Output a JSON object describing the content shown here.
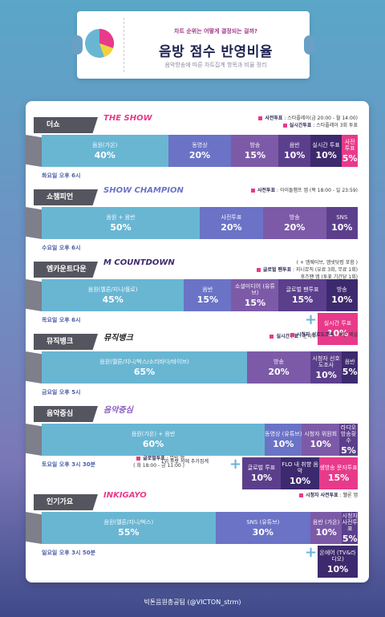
{
  "header": {
    "subtitle": "차트 순위는 어떻게 결정되는 걸까?",
    "title": "음방 점수 반영비율",
    "description": "음악방송에 따른 차트집계 항목과 비율 정리"
  },
  "colors": {
    "teal": "#69b6d3",
    "indigo": "#6b73c7",
    "violet": "#7c5aa8",
    "purple": "#5c3f8c",
    "deep": "#3d2a6e",
    "pink": "#e83a8a"
  },
  "chart_data": [
    {
      "type": "bar",
      "title": "더쇼",
      "logo": "THE SHOW",
      "schedule": "화요일 오후 6시",
      "notes": [
        {
          "label": "사전투표",
          "text": "스타플레이(금 20:00 - 월 14:00)"
        },
        {
          "label": "실시간투표",
          "text": "스타플레이 3회 투표"
        }
      ],
      "categories": [
        "음원(가온)",
        "동영상",
        "방송",
        "음반",
        "실시간 투표",
        "사전 투표"
      ],
      "values": [
        40,
        20,
        15,
        10,
        10,
        5
      ],
      "unit": "%"
    },
    {
      "type": "bar",
      "title": "쇼챔피언",
      "logo": "SHOW CHAMPION",
      "schedule": "수요일 오후 6시",
      "notes": [
        {
          "label": "사전투표",
          "text": "아이돌챔프 앱 (목 18:00 - 일 23:59)"
        }
      ],
      "categories": [
        "음원 + 음반",
        "사전투표",
        "방송",
        "SNS"
      ],
      "values": [
        50,
        20,
        20,
        10
      ],
      "unit": "%"
    },
    {
      "type": "bar",
      "title": "엠카운트다운",
      "logo": "M COUNTDOWN",
      "schedule": "목요일 오후 6시",
      "notes": [
        {
          "label": "",
          "text": "( + 엠웨이브, 엠넷닷컴 포함 )"
        },
        {
          "label": "글로벌 팬투표",
          "text": "지니뮤직 (유료 3회, 무료 1회)"
        },
        {
          "label": "",
          "text": "후즈팬 앱 (투표 기간당 1회)"
        },
        {
          "label": "실시간투표",
          "text": "문자투표"
        }
      ],
      "categories": [
        "음원(멜론/지니/플로)",
        "음반",
        "소셜미디어 (유튜브)",
        "글로벌 팬투표",
        "방송"
      ],
      "values": [
        45,
        15,
        15,
        15,
        10
      ],
      "extra": {
        "category": "실시간 투표",
        "value": 10
      },
      "unit": "%"
    },
    {
      "type": "bar",
      "title": "뮤직뱅크",
      "logo": "뮤직뱅크",
      "schedule": "금요일 오후 5시",
      "notes": [
        {
          "label": "시청자 선호도조사",
          "text": "국민 패널"
        }
      ],
      "categories": [
        "음원(멜론/지니/벅스/소리바다/바이브)",
        "방송",
        "시청자 선호도조사",
        "음반"
      ],
      "values": [
        65,
        20,
        10,
        5
      ],
      "unit": "%"
    },
    {
      "type": "bar",
      "title": "음악중심",
      "logo": "음악중심",
      "schedule": "토요일 오후 3시 30분",
      "notes": [
        {
          "label": "",
          "text": "1위 후보 시에 추가집계"
        },
        {
          "label": "글로벌투표",
          "text": "뮤빗 앱"
        },
        {
          "label": "",
          "text": "( 화 18:00 - 금 11:00 )"
        }
      ],
      "categories": [
        "음원(가온) + 음반",
        "동영상 (유튜브)",
        "시청자 위원회",
        "라디오 방송횟수"
      ],
      "values": [
        60,
        10,
        10,
        5
      ],
      "extra_row": {
        "categories": [
          "글로벌 투표",
          "FLO 내 취향 음악",
          "생방송 문자투표"
        ],
        "values": [
          10,
          10,
          15
        ]
      },
      "unit": "%"
    },
    {
      "type": "bar",
      "title": "인기가요",
      "logo": "INKIGAYO",
      "schedule": "일요일 오후 3시 50분",
      "notes": [
        {
          "label": "시청자 사전투표",
          "text": "웰론 앱"
        }
      ],
      "categories": [
        "음원(멜론/지니/벅스)",
        "SNS (유튜브)",
        "음반 (가온)",
        "시청자 사전투표"
      ],
      "values": [
        55,
        30,
        10,
        5
      ],
      "extra": {
        "category": "온에어 (TV&라디오)",
        "value": 10
      },
      "unit": "%"
    }
  ],
  "footer": "빅톤음원총공팀 (@VICTON_strm)"
}
